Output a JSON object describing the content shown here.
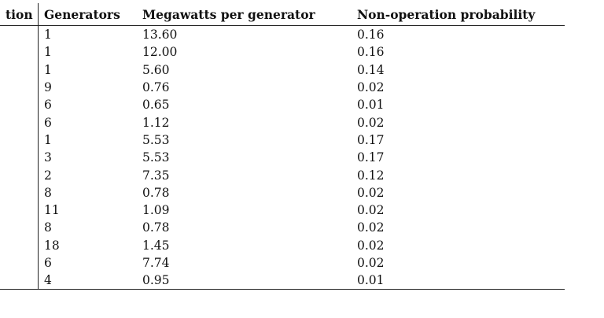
{
  "table": {
    "headers": {
      "station": "tion",
      "generators": "Generators",
      "megawatts": "Megawatts per generator",
      "probability": "Non-operation probability"
    },
    "rows": [
      {
        "station": "",
        "generators": "1",
        "megawatts": "13.60",
        "probability": "0.16"
      },
      {
        "station": "",
        "generators": "1",
        "megawatts": "12.00",
        "probability": "0.16"
      },
      {
        "station": "",
        "generators": "1",
        "megawatts": "5.60",
        "probability": "0.14"
      },
      {
        "station": "",
        "generators": "9",
        "megawatts": "0.76",
        "probability": "0.02"
      },
      {
        "station": "",
        "generators": "6",
        "megawatts": "0.65",
        "probability": "0.01"
      },
      {
        "station": "",
        "generators": "6",
        "megawatts": "1.12",
        "probability": "0.02"
      },
      {
        "station": "",
        "generators": "1",
        "megawatts": "5.53",
        "probability": "0.17"
      },
      {
        "station": "",
        "generators": "3",
        "megawatts": "5.53",
        "probability": "0.17"
      },
      {
        "station": "",
        "generators": "2",
        "megawatts": "7.35",
        "probability": "0.12"
      },
      {
        "station": "",
        "generators": "8",
        "megawatts": "0.78",
        "probability": "0.02"
      },
      {
        "station": "",
        "generators": "11",
        "megawatts": "1.09",
        "probability": "0.02"
      },
      {
        "station": "",
        "generators": "8",
        "megawatts": "0.78",
        "probability": "0.02"
      },
      {
        "station": "",
        "generators": "18",
        "megawatts": "1.45",
        "probability": "0.02"
      },
      {
        "station": "",
        "generators": "6",
        "megawatts": "7.74",
        "probability": "0.02"
      },
      {
        "station": "",
        "generators": "4",
        "megawatts": "0.95",
        "probability": "0.01"
      }
    ]
  }
}
